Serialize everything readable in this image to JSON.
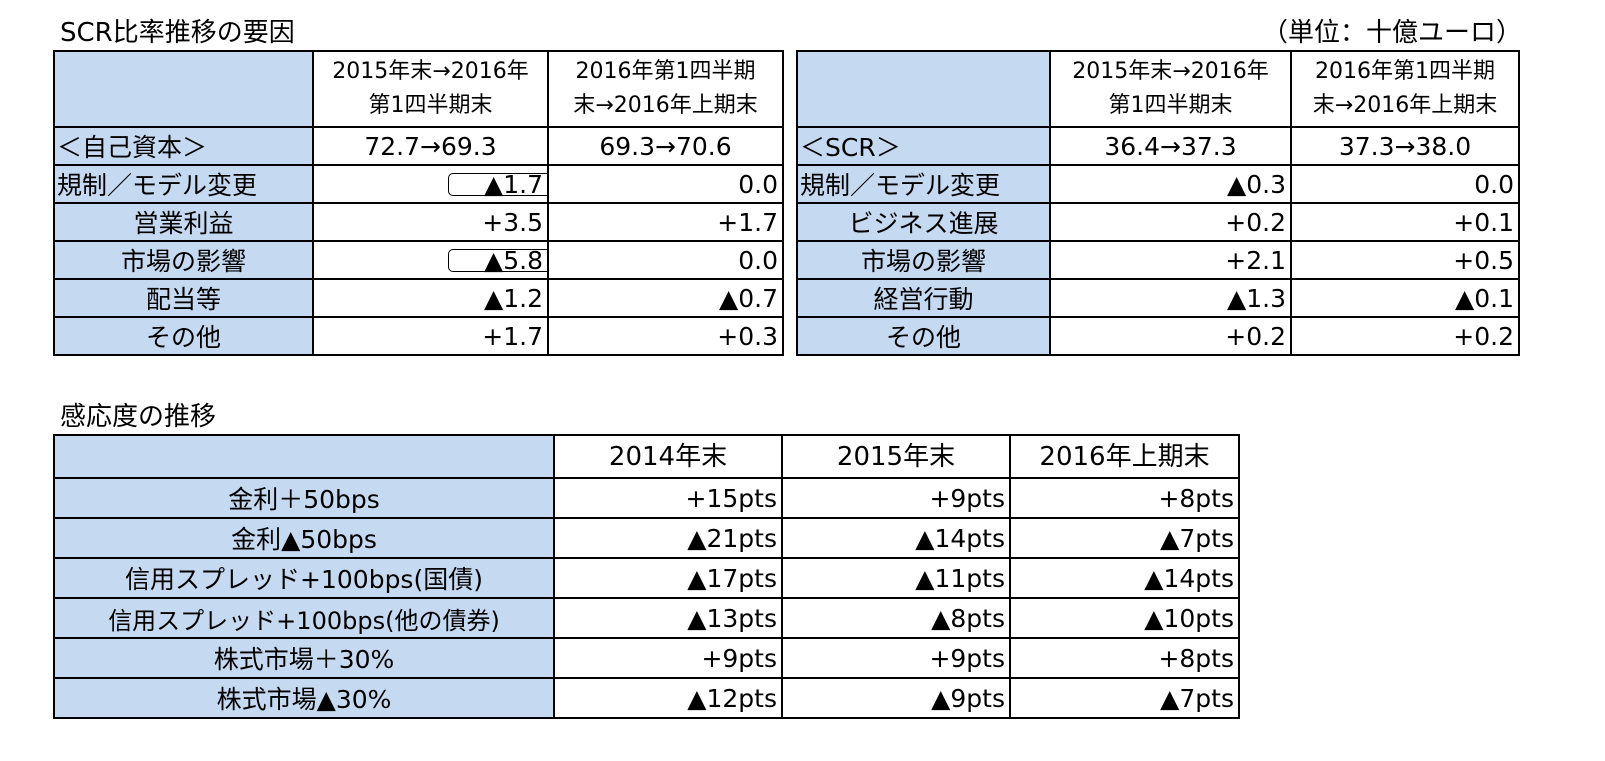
{
  "top": {
    "title": "SCR比率推移の要因",
    "unit": "（単位：十億ユーロ）",
    "equity_table": {
      "headers": [
        "",
        "2015年末→2016年\n第1四半期末",
        "2016年第1四半期\n末→2016年上期末"
      ],
      "rows": [
        {
          "label": "＜自己資本＞",
          "v1": "72.7→69.3",
          "v2": "69.3→70.6"
        },
        {
          "label": "規制／モデル変更",
          "v1": "▲1.7",
          "v2": "0.0"
        },
        {
          "label": "営業利益",
          "v1": "+3.5",
          "v2": "+1.7"
        },
        {
          "label": "市場の影響",
          "v1": "▲5.8",
          "v2": "0.0"
        },
        {
          "label": "配当等",
          "v1": "▲1.2",
          "v2": "▲0.7"
        },
        {
          "label": "その他",
          "v1": "+1.7",
          "v2": "+0.3"
        }
      ]
    },
    "scr_table": {
      "headers": [
        "",
        "2015年末→2016年\n第1四半期末",
        "2016年第1四半期\n末→2016年上期末"
      ],
      "rows": [
        {
          "label": "＜SCR＞",
          "v1": "36.4→37.3",
          "v2": "37.3→38.0"
        },
        {
          "label": "規制／モデル変更",
          "v1": "▲0.3",
          "v2": "0.0"
        },
        {
          "label": "ビジネス進展",
          "v1": "+0.2",
          "v2": "+0.1"
        },
        {
          "label": "市場の影響",
          "v1": "+2.1",
          "v2": "+0.5"
        },
        {
          "label": "経営行動",
          "v1": "▲1.3",
          "v2": "▲0.1"
        },
        {
          "label": "その他",
          "v1": "+0.2",
          "v2": "+0.2"
        }
      ]
    }
  },
  "sensitivity": {
    "title": "感応度の推移",
    "headers": [
      "",
      "2014年末",
      "2015年末",
      "2016年上期末"
    ],
    "rows": [
      {
        "label": "金利＋50bps",
        "v1": "+15pts",
        "v2": "+9pts",
        "v3": "+8pts"
      },
      {
        "label": "金利▲50bps",
        "v1": "▲21pts",
        "v2": "▲14pts",
        "v3": "▲7pts"
      },
      {
        "label": "信用スプレッド+100bps(国債)",
        "v1": "▲17pts",
        "v2": "▲11pts",
        "v3": "▲14pts"
      },
      {
        "label": "信用スプレッド+100bps(他の債券)",
        "v1": "▲13pts",
        "v2": "▲8pts",
        "v3": "▲10pts"
      },
      {
        "label": "株式市場＋30%",
        "v1": "+9pts",
        "v2": "+9pts",
        "v3": "+8pts"
      },
      {
        "label": "株式市場▲30%",
        "v1": "▲12pts",
        "v2": "▲9pts",
        "v3": "▲7pts"
      }
    ]
  }
}
